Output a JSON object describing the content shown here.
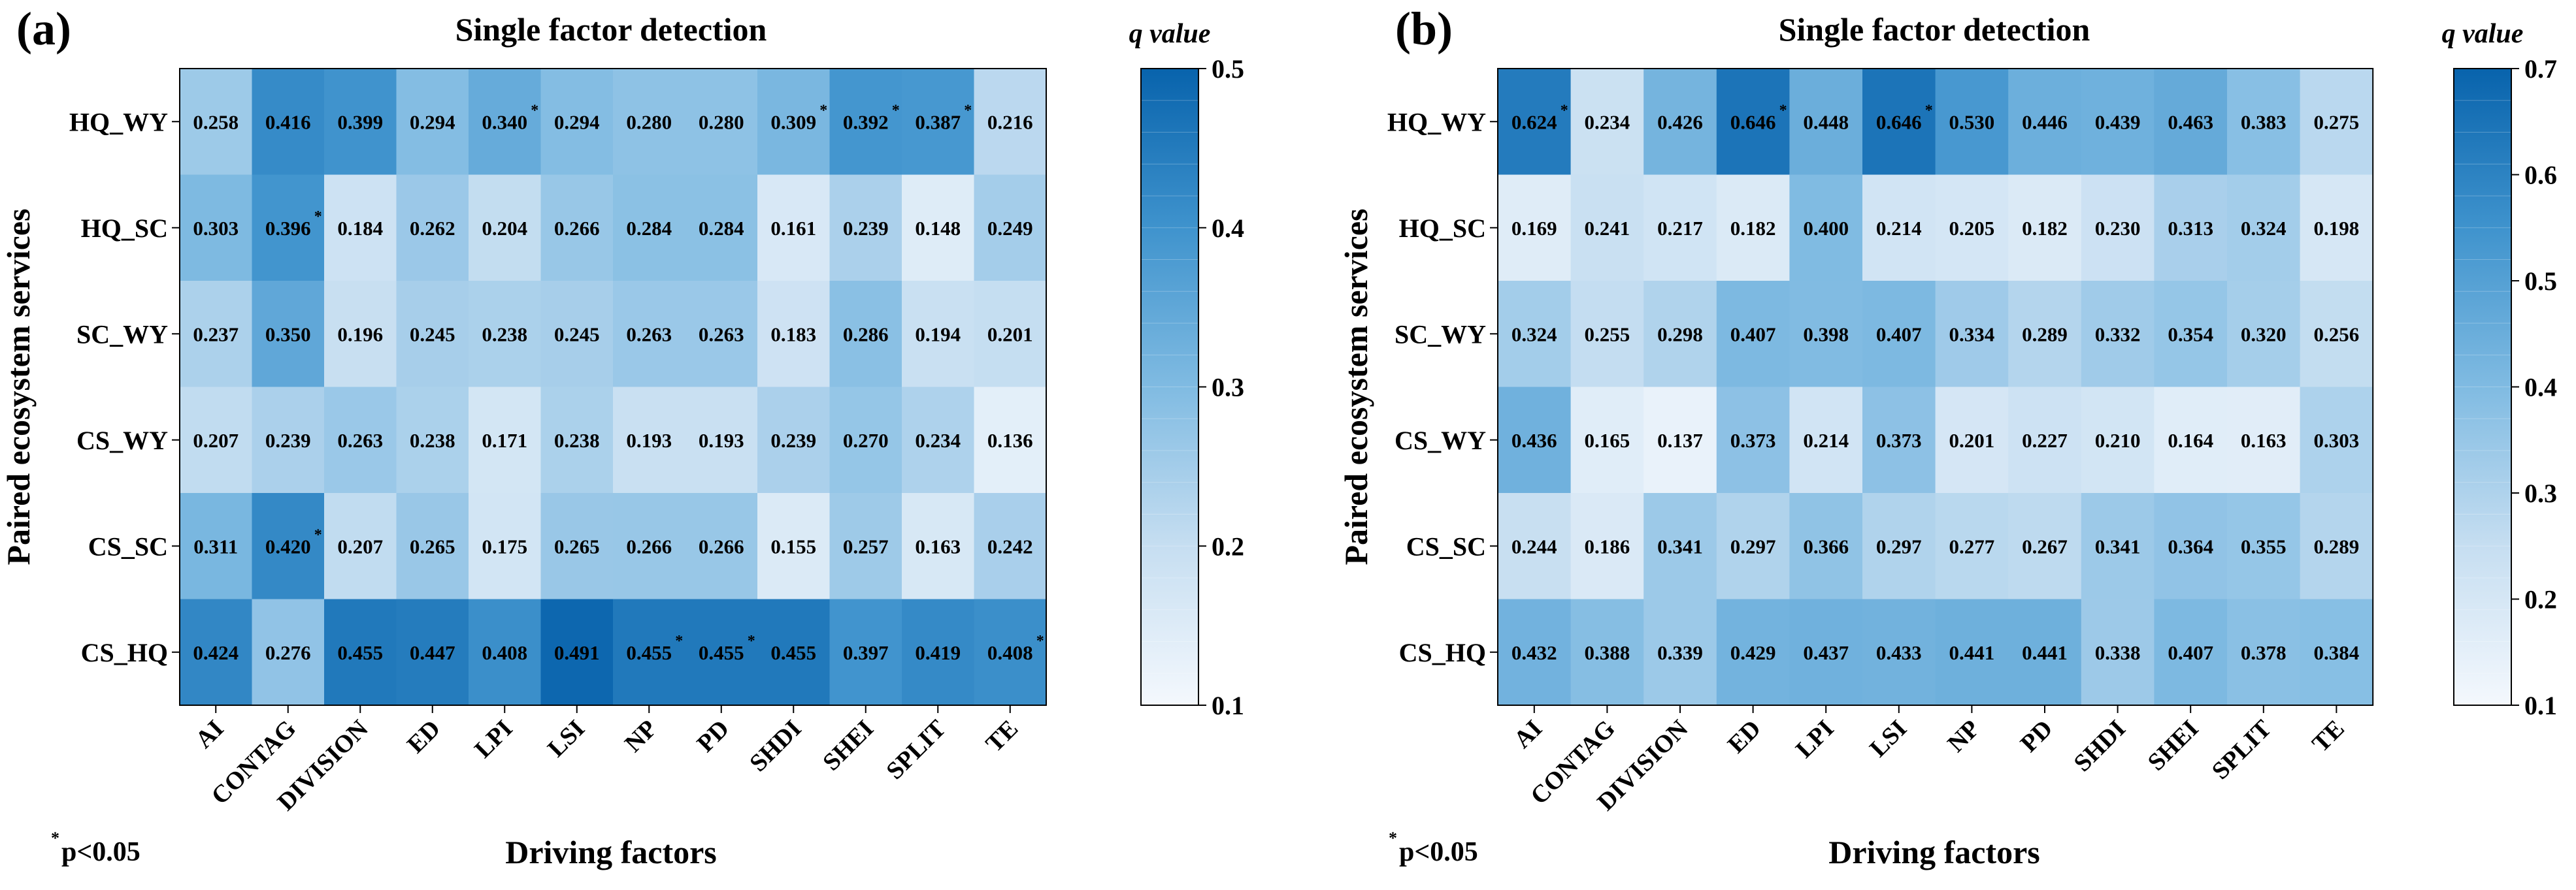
{
  "footnote": {
    "star": "*",
    "text": "p<0.05"
  },
  "chart_data": [
    {
      "type": "heatmap",
      "panel_label": "(a)",
      "title": "Single factor detection",
      "xlabel": "Driving factors",
      "ylabel": "Paired ecosystem services",
      "colorbar_label": "q value",
      "colorbar_range": [
        0.1,
        0.5
      ],
      "colorbar_ticks": [
        "0.1",
        "0.2",
        "0.3",
        "0.4",
        "0.5"
      ],
      "x_categories": [
        "AI",
        "CONTAG",
        "DIVISION",
        "ED",
        "LPI",
        "LSI",
        "NP",
        "PD",
        "SHDI",
        "SHEI",
        "SPLIT",
        "TE"
      ],
      "y_categories": [
        "HQ_WY",
        "HQ_SC",
        "SC_WY",
        "CS_WY",
        "CS_SC",
        "CS_HQ"
      ],
      "values": [
        [
          0.258,
          0.416,
          0.399,
          0.294,
          0.34,
          0.294,
          0.28,
          0.28,
          0.309,
          0.392,
          0.387,
          0.216
        ],
        [
          0.303,
          0.396,
          0.184,
          0.262,
          0.204,
          0.266,
          0.284,
          0.284,
          0.161,
          0.239,
          0.148,
          0.249
        ],
        [
          0.237,
          0.35,
          0.196,
          0.245,
          0.238,
          0.245,
          0.263,
          0.263,
          0.183,
          0.286,
          0.194,
          0.201
        ],
        [
          0.207,
          0.239,
          0.263,
          0.238,
          0.171,
          0.238,
          0.193,
          0.193,
          0.239,
          0.27,
          0.234,
          0.136
        ],
        [
          0.311,
          0.42,
          0.207,
          0.265,
          0.175,
          0.265,
          0.266,
          0.266,
          0.155,
          0.257,
          0.163,
          0.242
        ],
        [
          0.424,
          0.276,
          0.455,
          0.447,
          0.408,
          0.491,
          0.455,
          0.455,
          0.455,
          0.397,
          0.419,
          0.408
        ]
      ],
      "significant": [
        [
          false,
          false,
          false,
          false,
          true,
          false,
          false,
          false,
          true,
          true,
          true,
          false
        ],
        [
          false,
          true,
          false,
          false,
          false,
          false,
          false,
          false,
          false,
          false,
          false,
          false
        ],
        [
          false,
          false,
          false,
          false,
          false,
          false,
          false,
          false,
          false,
          false,
          false,
          false
        ],
        [
          false,
          false,
          false,
          false,
          false,
          false,
          false,
          false,
          false,
          false,
          false,
          false
        ],
        [
          false,
          true,
          false,
          false,
          false,
          false,
          false,
          false,
          false,
          false,
          false,
          false
        ],
        [
          false,
          false,
          false,
          false,
          false,
          false,
          true,
          true,
          false,
          false,
          false,
          true
        ]
      ]
    },
    {
      "type": "heatmap",
      "panel_label": "(b)",
      "title": "Single factor detection",
      "xlabel": "Driving factors",
      "ylabel": "Paired ecosystem services",
      "colorbar_label": "q value",
      "colorbar_range": [
        0.1,
        0.7
      ],
      "colorbar_ticks": [
        "0.1",
        "0.2",
        "0.3",
        "0.4",
        "0.5",
        "0.6",
        "0.7"
      ],
      "x_categories": [
        "AI",
        "CONTAG",
        "DIVISION",
        "ED",
        "LPI",
        "LSI",
        "NP",
        "PD",
        "SHDI",
        "SHEI",
        "SPLIT",
        "TE"
      ],
      "y_categories": [
        "HQ_WY",
        "HQ_SC",
        "SC_WY",
        "CS_WY",
        "CS_SC",
        "CS_HQ"
      ],
      "values": [
        [
          0.624,
          0.234,
          0.426,
          0.646,
          0.448,
          0.646,
          0.53,
          0.446,
          0.439,
          0.463,
          0.383,
          0.275
        ],
        [
          0.169,
          0.241,
          0.217,
          0.182,
          0.4,
          0.214,
          0.205,
          0.182,
          0.23,
          0.313,
          0.324,
          0.198
        ],
        [
          0.324,
          0.255,
          0.298,
          0.407,
          0.398,
          0.407,
          0.334,
          0.289,
          0.332,
          0.354,
          0.32,
          0.256
        ],
        [
          0.436,
          0.165,
          0.137,
          0.373,
          0.214,
          0.373,
          0.201,
          0.227,
          0.21,
          0.164,
          0.163,
          0.303
        ],
        [
          0.244,
          0.186,
          0.341,
          0.297,
          0.366,
          0.297,
          0.277,
          0.267,
          0.341,
          0.364,
          0.355,
          0.289
        ],
        [
          0.432,
          0.388,
          0.339,
          0.429,
          0.437,
          0.433,
          0.441,
          0.441,
          0.338,
          0.407,
          0.378,
          0.384
        ]
      ],
      "significant": [
        [
          true,
          false,
          false,
          true,
          false,
          true,
          false,
          false,
          false,
          false,
          false,
          false
        ],
        [
          false,
          false,
          false,
          false,
          false,
          false,
          false,
          false,
          false,
          false,
          false,
          false
        ],
        [
          false,
          false,
          false,
          false,
          false,
          false,
          false,
          false,
          false,
          false,
          false,
          false
        ],
        [
          false,
          false,
          false,
          false,
          false,
          false,
          false,
          false,
          false,
          false,
          false,
          false
        ],
        [
          false,
          false,
          false,
          false,
          false,
          false,
          false,
          false,
          false,
          false,
          false,
          false
        ],
        [
          false,
          false,
          false,
          false,
          false,
          false,
          false,
          false,
          false,
          false,
          false,
          false
        ]
      ]
    }
  ]
}
